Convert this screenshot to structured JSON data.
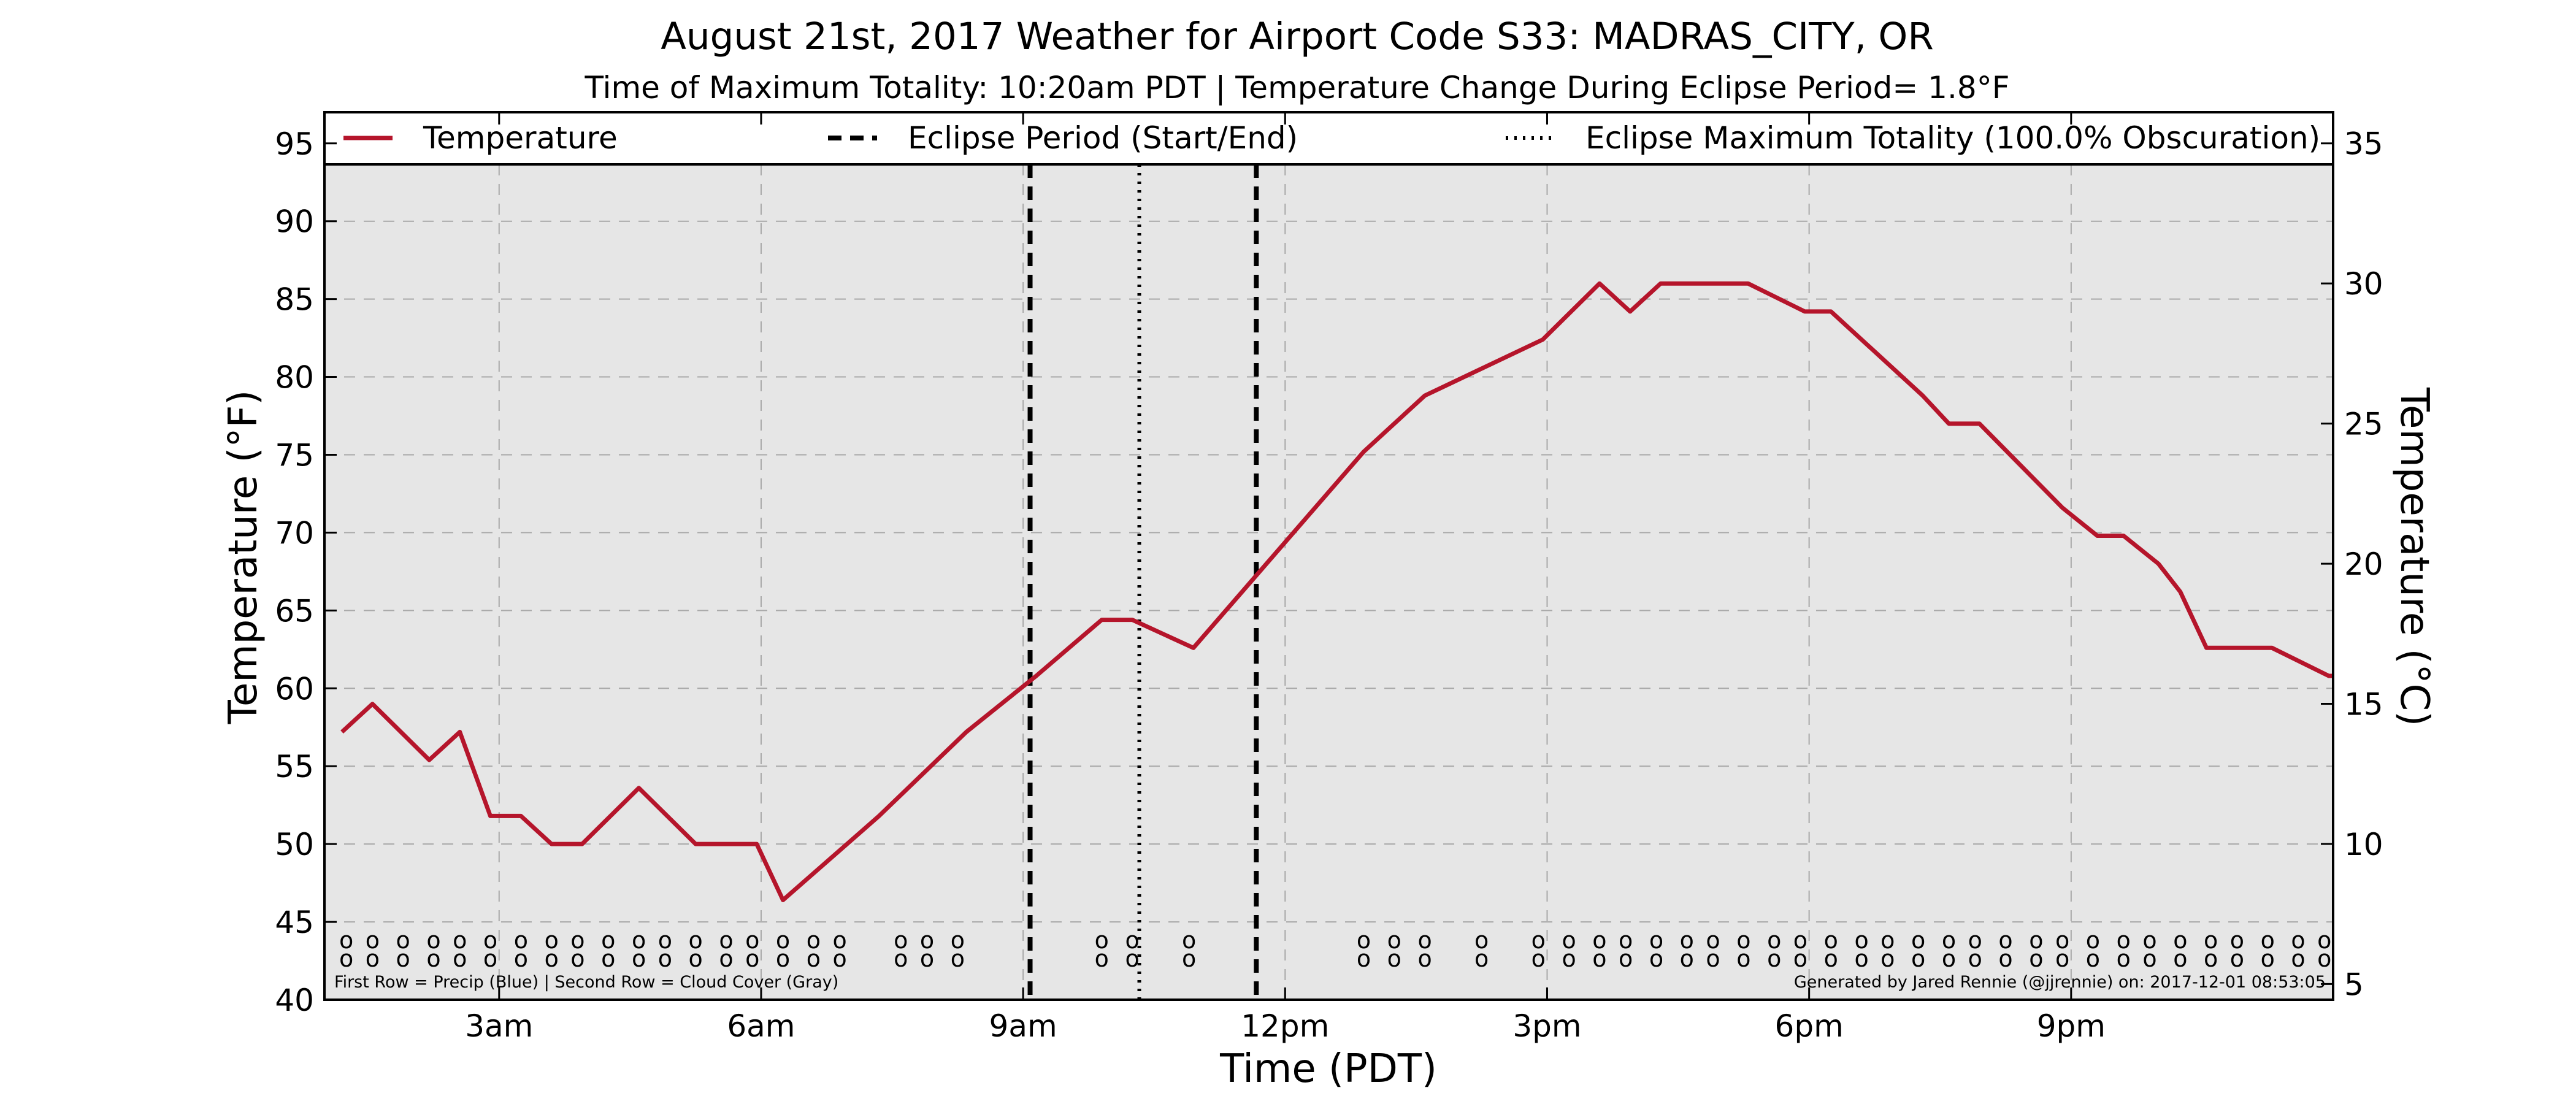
{
  "chart_data": {
    "type": "line",
    "title": "August 21st, 2017 Weather for Airport Code S33: MADRAS_CITY, OR",
    "subtitle": "Time of Maximum Totality: 10:20am PDT | Temperature Change During Eclipse Period= 1.8°F",
    "xlabel": "Time (PDT)",
    "ylabel": "Temperature (°F)",
    "ylabel_right": "Temperature (°C)",
    "x_unit": "hours after midnight PDT",
    "xlim": [
      1,
      24
    ],
    "ylim": [
      40,
      97
    ],
    "ylim_right_celsius": [
      4.44,
      36.11
    ],
    "x_ticks": [
      {
        "x": 3,
        "label": "3am"
      },
      {
        "x": 6,
        "label": "6am"
      },
      {
        "x": 9,
        "label": "9am"
      },
      {
        "x": 12,
        "label": "12pm"
      },
      {
        "x": 15,
        "label": "3pm"
      },
      {
        "x": 18,
        "label": "6pm"
      },
      {
        "x": 21,
        "label": "9pm"
      }
    ],
    "y_ticks": [
      40,
      45,
      50,
      55,
      60,
      65,
      70,
      75,
      80,
      85,
      90,
      95
    ],
    "y_ticks_right": [
      5,
      10,
      15,
      20,
      25,
      30,
      35
    ],
    "grid": true,
    "legend_position": "top",
    "legend": [
      {
        "label": "Temperature",
        "style": "solid",
        "color": "#b5152b"
      },
      {
        "label": "Eclipse Period (Start/End)",
        "style": "dashed",
        "color": "#000000"
      },
      {
        "label": "Eclipse Maximum Totality (100.0% Obscuration)",
        "style": "dotted",
        "color": "#000000"
      }
    ],
    "series": [
      {
        "name": "Temperature",
        "color": "#b5152b",
        "points": [
          [
            1.2,
            57.2
          ],
          [
            1.55,
            59.0
          ],
          [
            2.2,
            55.4
          ],
          [
            2.55,
            57.2
          ],
          [
            2.9,
            51.8
          ],
          [
            3.25,
            51.8
          ],
          [
            3.6,
            50.0
          ],
          [
            3.95,
            50.0
          ],
          [
            4.6,
            53.6
          ],
          [
            5.25,
            50.0
          ],
          [
            5.95,
            50.0
          ],
          [
            6.25,
            46.4
          ],
          [
            7.35,
            51.8
          ],
          [
            8.35,
            57.2
          ],
          [
            9.15,
            60.8
          ],
          [
            9.9,
            64.4
          ],
          [
            10.25,
            64.4
          ],
          [
            10.95,
            62.6
          ],
          [
            12.9,
            75.2
          ],
          [
            13.6,
            78.8
          ],
          [
            14.95,
            82.4
          ],
          [
            15.6,
            86.0
          ],
          [
            15.95,
            84.2
          ],
          [
            16.3,
            86.0
          ],
          [
            17.3,
            86.0
          ],
          [
            17.95,
            84.2
          ],
          [
            18.25,
            84.2
          ],
          [
            19.3,
            78.8
          ],
          [
            19.6,
            77.0
          ],
          [
            19.95,
            77.0
          ],
          [
            20.9,
            71.6
          ],
          [
            21.3,
            69.8
          ],
          [
            21.6,
            69.8
          ],
          [
            22.0,
            68.0
          ],
          [
            22.25,
            66.2
          ],
          [
            22.55,
            62.6
          ],
          [
            23.3,
            62.6
          ],
          [
            23.95,
            60.8
          ],
          [
            24.0,
            60.8
          ]
        ]
      }
    ],
    "eclipse_start": 9.08,
    "eclipse_end": 11.67,
    "eclipse_max": 10.33,
    "observation_times": [
      1.25,
      1.55,
      1.9,
      2.25,
      2.55,
      2.9,
      3.25,
      3.6,
      3.9,
      4.25,
      4.6,
      4.9,
      5.25,
      5.6,
      5.9,
      6.25,
      6.6,
      6.9,
      7.6,
      7.9,
      8.25,
      9.9,
      10.25,
      10.9,
      12.9,
      13.25,
      13.6,
      14.25,
      14.9,
      15.25,
      15.6,
      15.9,
      16.25,
      16.6,
      16.9,
      17.25,
      17.6,
      17.9,
      18.25,
      18.6,
      18.9,
      19.25,
      19.6,
      19.9,
      20.25,
      20.6,
      20.9,
      21.25,
      21.6,
      21.9,
      22.25,
      22.6,
      22.9,
      23.25,
      23.6,
      23.9
    ],
    "observation_glyph": "o",
    "footnote_left": "First Row = Precip (Blue) | Second Row = Cloud Cover (Gray)",
    "footnote_right": "Generated by Jared Rennie (@jjrennie) on: 2017-12-01 08:53:05"
  },
  "colors": {
    "plot_background": "#e6e6e6",
    "grid": "#a8a8a8",
    "temperature_line": "#b5152b",
    "eclipse_lines": "#000000"
  }
}
